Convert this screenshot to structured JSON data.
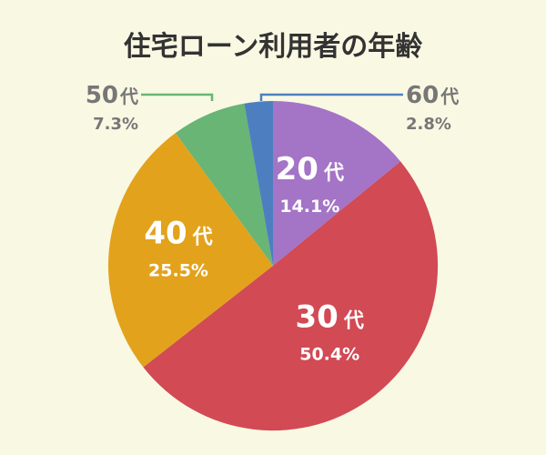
{
  "chart_data": {
    "type": "pie",
    "title": "住宅ローン利用者の年齢",
    "slices": [
      {
        "category": "20",
        "suffix": "代",
        "value": 14.1,
        "percent_label": "14.1%",
        "color": "#a474c6"
      },
      {
        "category": "30",
        "suffix": "代",
        "value": 50.4,
        "percent_label": "50.4%",
        "color": "#d14a54"
      },
      {
        "category": "40",
        "suffix": "代",
        "value": 25.5,
        "percent_label": "25.5%",
        "color": "#e3a21c"
      },
      {
        "category": "50",
        "suffix": "代",
        "value": 7.3,
        "percent_label": "7.3%",
        "color": "#68b575"
      },
      {
        "category": "60",
        "suffix": "代",
        "value": 2.8,
        "percent_label": "2.8%",
        "color": "#4d7fc0"
      }
    ]
  },
  "colors": {
    "background": "#f9f8e3",
    "title_text": "#333333",
    "outside_label_text": "#777777"
  }
}
